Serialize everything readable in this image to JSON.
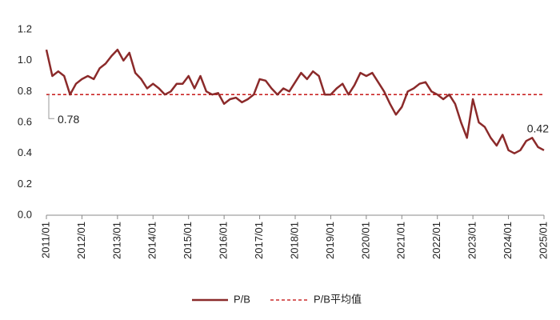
{
  "chart_data": {
    "type": "line",
    "x": [
      "2011/01",
      "2011/03",
      "2011/05",
      "2011/07",
      "2011/09",
      "2011/11",
      "2012/01",
      "2012/03",
      "2012/05",
      "2012/07",
      "2012/09",
      "2012/11",
      "2013/01",
      "2013/03",
      "2013/05",
      "2013/07",
      "2013/09",
      "2013/11",
      "2014/01",
      "2014/03",
      "2014/05",
      "2014/07",
      "2014/09",
      "2014/11",
      "2015/01",
      "2015/03",
      "2015/05",
      "2015/07",
      "2015/09",
      "2015/11",
      "2016/01",
      "2016/03",
      "2016/05",
      "2016/07",
      "2016/09",
      "2016/11",
      "2017/01",
      "2017/03",
      "2017/05",
      "2017/07",
      "2017/09",
      "2017/11",
      "2018/01",
      "2018/03",
      "2018/05",
      "2018/07",
      "2018/09",
      "2018/11",
      "2019/01",
      "2019/03",
      "2019/05",
      "2019/07",
      "2019/09",
      "2019/11",
      "2020/01",
      "2020/03",
      "2020/05",
      "2020/07",
      "2020/09",
      "2020/11",
      "2021/01",
      "2021/03",
      "2021/05",
      "2021/07",
      "2021/09",
      "2021/11",
      "2022/01",
      "2022/03",
      "2022/05",
      "2022/07",
      "2022/09",
      "2022/11",
      "2023/01",
      "2023/03",
      "2023/05",
      "2023/07",
      "2023/09",
      "2023/11",
      "2024/01",
      "2024/03",
      "2024/05",
      "2024/07",
      "2024/09",
      "2024/11",
      "2025/01"
    ],
    "series": [
      {
        "name": "P/B",
        "color": "#8B2A2A",
        "values": [
          1.07,
          0.9,
          0.93,
          0.9,
          0.78,
          0.85,
          0.88,
          0.9,
          0.88,
          0.95,
          0.98,
          1.03,
          1.07,
          1.0,
          1.05,
          0.92,
          0.88,
          0.82,
          0.85,
          0.82,
          0.78,
          0.8,
          0.85,
          0.85,
          0.9,
          0.82,
          0.9,
          0.8,
          0.78,
          0.79,
          0.72,
          0.75,
          0.76,
          0.73,
          0.75,
          0.78,
          0.88,
          0.87,
          0.82,
          0.78,
          0.82,
          0.8,
          0.86,
          0.92,
          0.88,
          0.93,
          0.9,
          0.78,
          0.78,
          0.82,
          0.85,
          0.78,
          0.84,
          0.92,
          0.9,
          0.92,
          0.86,
          0.8,
          0.72,
          0.65,
          0.7,
          0.8,
          0.82,
          0.85,
          0.86,
          0.8,
          0.78,
          0.75,
          0.78,
          0.72,
          0.6,
          0.5,
          0.75,
          0.6,
          0.57,
          0.5,
          0.45,
          0.52,
          0.42,
          0.4,
          0.42,
          0.48,
          0.5,
          0.44,
          0.42
        ]
      }
    ],
    "average": {
      "name": "P/B平均值",
      "value": 0.78,
      "color": "#C00000"
    },
    "ylim": [
      0,
      1.2
    ],
    "yticks": [
      {
        "value": 0,
        "label": "0.0"
      },
      0.2,
      0.4,
      0.6,
      0.8,
      {
        "value": 1,
        "label": "1.0"
      },
      1.2
    ],
    "legend": "bottom"
  }
}
